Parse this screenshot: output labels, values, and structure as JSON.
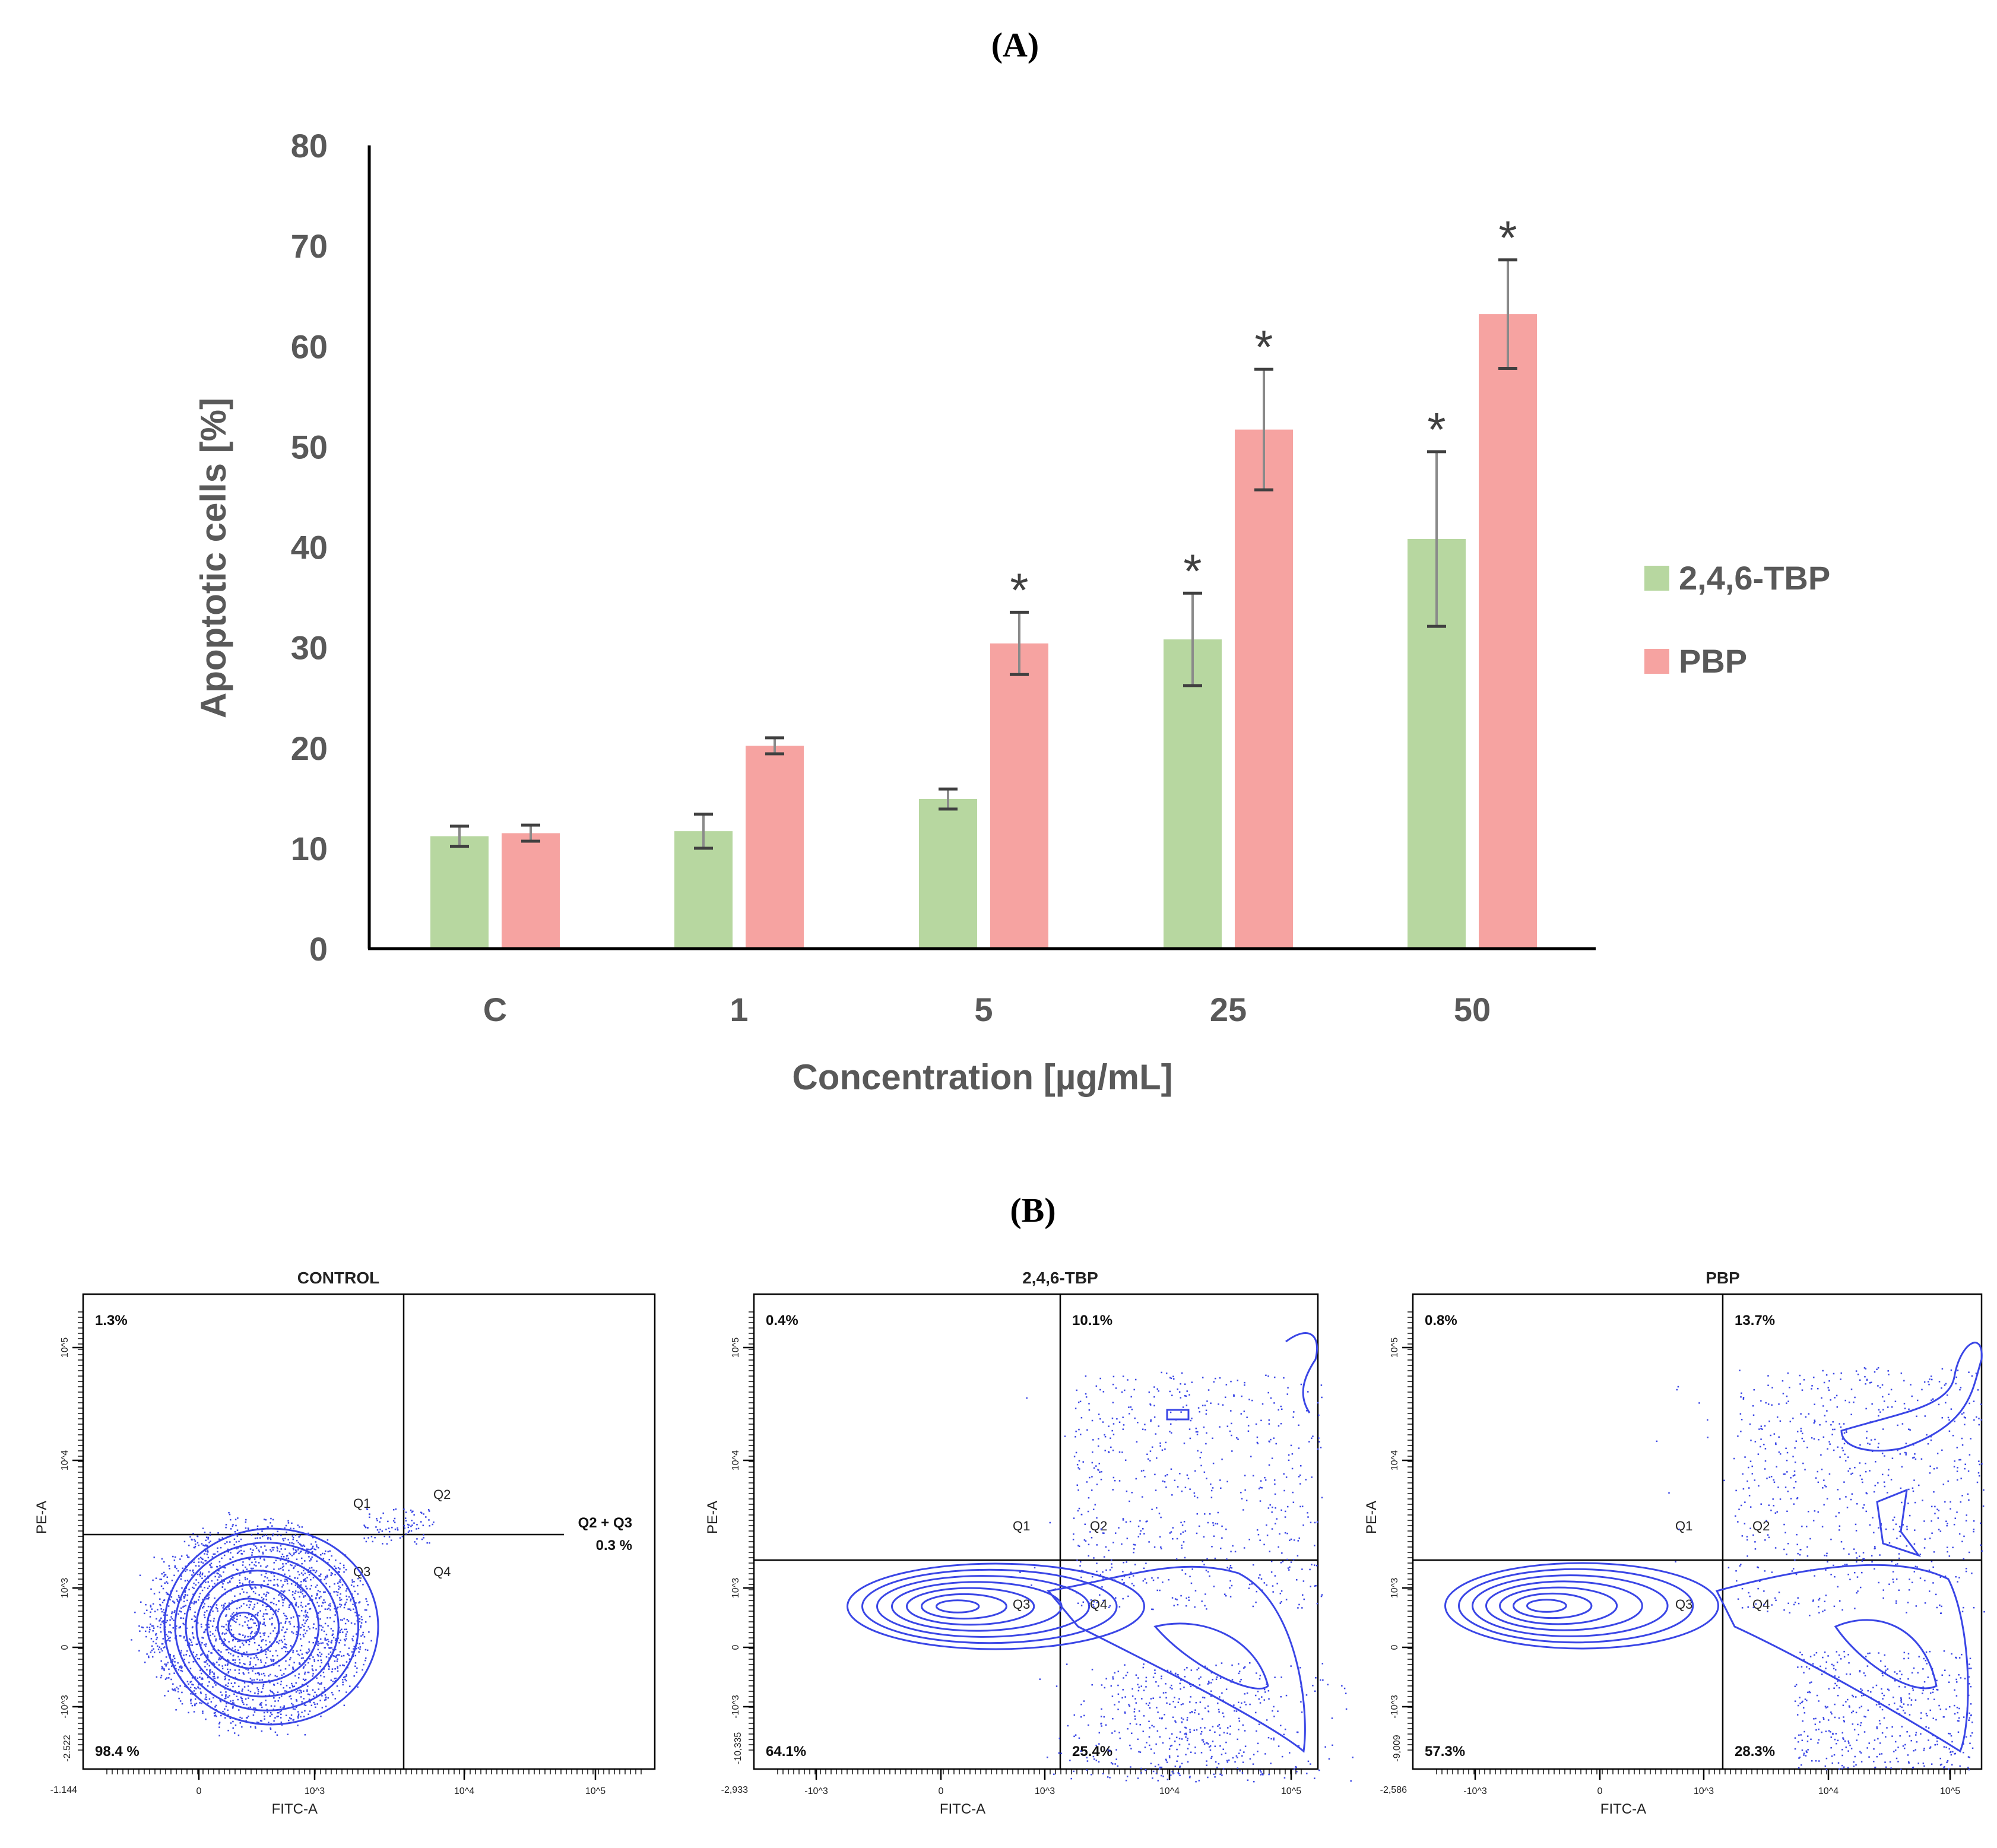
{
  "panel_a_label": "(A)",
  "panel_b_label": "(B)",
  "chart_data": {
    "type": "bar",
    "categories": [
      "C",
      "1",
      "5",
      "25",
      "50"
    ],
    "series": [
      {
        "name": "2,4,6-TBP",
        "values": [
          11.2,
          11.7,
          14.9,
          30.8,
          40.8
        ],
        "errors": [
          1.0,
          1.7,
          1.0,
          4.6,
          8.7
        ],
        "significant": [
          false,
          false,
          false,
          true,
          true
        ],
        "color": "#b7d7a0"
      },
      {
        "name": "PBP",
        "values": [
          11.5,
          20.2,
          30.4,
          51.7,
          63.2
        ],
        "errors": [
          0.8,
          0.8,
          3.1,
          6.0,
          5.4
        ],
        "significant": [
          false,
          false,
          true,
          true,
          true
        ],
        "color": "#f6a3a1"
      }
    ],
    "significance_marker": "*",
    "xlabel": "Concentration [µg/mL]",
    "ylabel": "Apoptotic cells [%]",
    "ylim": [
      0,
      80
    ],
    "yticks": [
      0,
      10,
      20,
      30,
      40,
      50,
      60,
      70,
      80
    ],
    "legend_position": "right"
  },
  "flow_panels": [
    {
      "title": "CONTROL",
      "q1_pct": "1.3%",
      "q2_pct": "",
      "q3_pct": "98.4 %",
      "q4_pct": "",
      "extra_label": "Q2 + Q3",
      "extra_pct": "0.3 %",
      "x_min": "-1.144",
      "y_min": "-2.522",
      "x_ticks": [
        "0",
        "10^3",
        "10^4",
        "10^5"
      ],
      "y_ticks": [
        "10^5",
        "10^4",
        "10^3",
        "0",
        "-10^3"
      ],
      "quadrant_labels": [
        "Q1",
        "Q2",
        "Q3",
        "Q4"
      ],
      "x_axis_label": "FITC-A",
      "y_axis_label": "PE-A"
    },
    {
      "title": "2,4,6-TBP",
      "q1_pct": "0.4%",
      "q2_pct": "10.1%",
      "q3_pct": "64.1%",
      "q4_pct": "25.4%",
      "x_min": "-2,933",
      "y_min": "-10,335",
      "x_ticks": [
        "-10^3",
        "0",
        "10^3",
        "10^4",
        "10^5"
      ],
      "y_ticks": [
        "10^5",
        "10^4",
        "10^3",
        "0",
        "-10^3"
      ],
      "quadrant_labels": [
        "Q1",
        "Q2",
        "Q3",
        "Q4"
      ],
      "x_axis_label": "FITC-A",
      "y_axis_label": "PE-A"
    },
    {
      "title": "PBP",
      "q1_pct": "0.8%",
      "q2_pct": "13.7%",
      "q3_pct": "57.3%",
      "q4_pct": "28.3%",
      "x_min": "-2,586",
      "y_min": "-9,009",
      "x_ticks": [
        "-10^3",
        "0",
        "10^3",
        "10^4",
        "10^5"
      ],
      "y_ticks": [
        "10^5",
        "10^4",
        "10^3",
        "0",
        "-10^3"
      ],
      "quadrant_labels": [
        "Q1",
        "Q2",
        "Q3",
        "Q4"
      ],
      "x_axis_label": "FITC-A",
      "y_axis_label": "PE-A"
    }
  ]
}
